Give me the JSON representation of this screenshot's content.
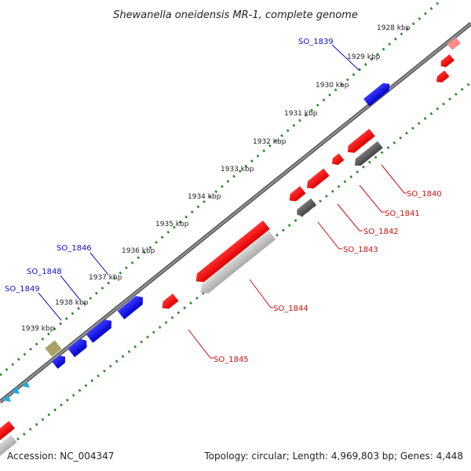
{
  "title": "Shewanella oneidensis MR-1, complete genome",
  "footer": {
    "accession": "Accession: NC_004347",
    "summary": "Topology: circular; Length: 4,969,803 bp; Genes: 4,448"
  },
  "ticks": [
    "1928 kbp",
    "1929 kbp",
    "1930 kbp",
    "1931 kbp",
    "1932 kbp",
    "1933 kbp",
    "1934 kbp",
    "1935 kbp",
    "1936 kbp",
    "1937 kbp",
    "1938 kbp",
    "1939 kbp"
  ],
  "gene_labels_forward": [
    "SO_1839",
    "SO_1846",
    "SO_1848",
    "SO_1849"
  ],
  "gene_labels_reverse": [
    "SO_1840",
    "SO_1841",
    "SO_1842",
    "SO_1843",
    "SO_1844",
    "SO_1845"
  ],
  "colors": {
    "forward_cds": "#0000ee",
    "reverse_cds": "#ee0000",
    "pseudo": "#555555",
    "rna": "#aaa266",
    "backbone": "#777777",
    "dots": "#2a8a2a",
    "forward_label": "#1010cc",
    "reverse_label": "#cc1010"
  }
}
